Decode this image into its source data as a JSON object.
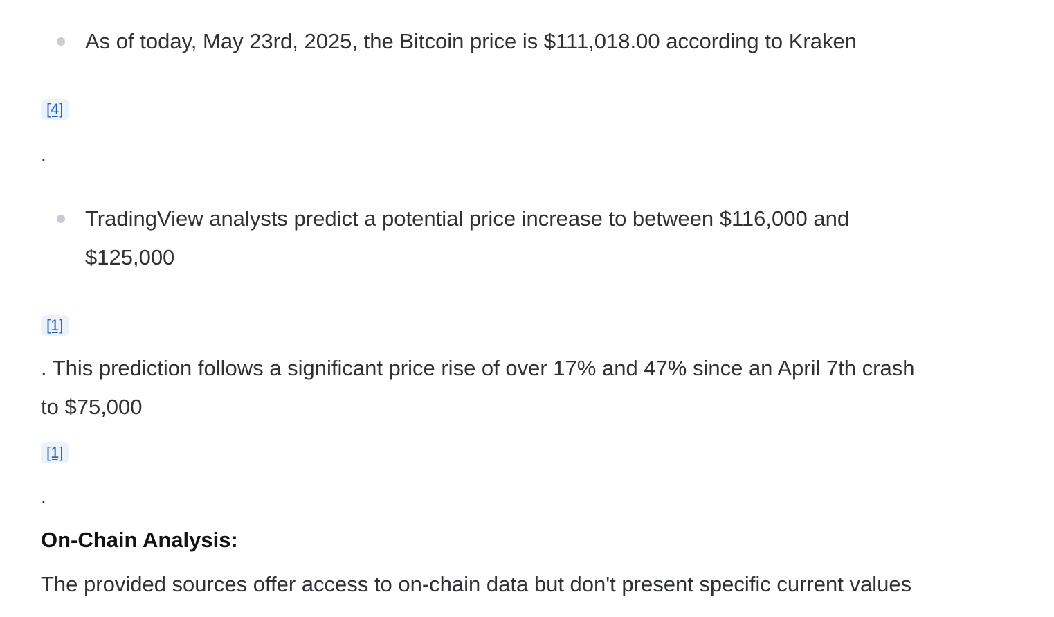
{
  "bullets": [
    {
      "text": "As of today, May 23rd, 2025, the Bitcoin price is $111,018.00 according to Kraken"
    },
    {
      "line1": "TradingView analysts predict a potential price increase to between $116,000 and",
      "line2": "$125,000"
    }
  ],
  "citations": {
    "c1": "[4]",
    "c2": "[1]",
    "c3": "[1]"
  },
  "periods": {
    "p1": ".",
    "p2": "."
  },
  "paragraph": {
    "line1": ". This prediction follows a significant price rise of over 17% and 47% since an April 7th crash",
    "line2": "to $75,000"
  },
  "section": {
    "heading": "On-Chain Analysis:",
    "body_line1": "The provided sources offer access to on-chain data but don't present specific current values"
  }
}
